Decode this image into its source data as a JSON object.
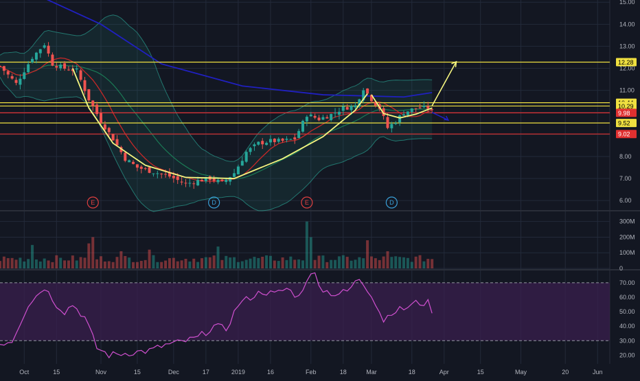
{
  "chart_data": {
    "type": "candlestick",
    "x_ticks": [
      "Oct",
      "15",
      "Nov",
      "15",
      "Dec",
      "17",
      "2019",
      "16",
      "Feb",
      "18",
      "Mar",
      "18",
      "Apr",
      "15",
      "May",
      "20",
      "Jun"
    ],
    "price_axis": {
      "ticks": [
        "15.00",
        "14.00",
        "13.00",
        "12.00",
        "11.00",
        "10.00",
        "9.00",
        "8.00",
        "7.00",
        "6.00"
      ],
      "ylim": [
        5.6,
        15.1
      ]
    },
    "horizontal_levels": [
      {
        "label": "12.28",
        "value": 12.28,
        "color": "#f0e040"
      },
      {
        "label": "10.44",
        "value": 10.44,
        "color": "#f0e040"
      },
      {
        "label": "10.29",
        "value": 10.29,
        "color": "#f0e040"
      },
      {
        "label": "9.98",
        "value": 9.98,
        "color": "#e03030"
      },
      {
        "label": "9.52",
        "value": 9.52,
        "color": "#f0e040"
      },
      {
        "label": "9.02",
        "value": 9.02,
        "color": "#e03030"
      }
    ],
    "event_markers": [
      {
        "label": "E",
        "index": 23,
        "color": "#e04040"
      },
      {
        "label": "D",
        "index": 53,
        "color": "#3aa0d8"
      },
      {
        "label": "E",
        "index": 76,
        "color": "#e04040"
      },
      {
        "label": "D",
        "index": 97,
        "color": "#3aa0d8"
      }
    ],
    "price_close_anchors": [
      [
        0,
        12.1
      ],
      [
        4,
        11.3
      ],
      [
        8,
        12.5
      ],
      [
        11,
        13.1
      ],
      [
        13,
        12.2
      ],
      [
        16,
        12.0
      ],
      [
        19,
        11.9
      ],
      [
        22,
        10.6
      ],
      [
        25,
        9.6
      ],
      [
        28,
        8.8
      ],
      [
        31,
        7.9
      ],
      [
        34,
        7.5
      ],
      [
        38,
        7.3
      ],
      [
        42,
        7.1
      ],
      [
        46,
        6.75
      ],
      [
        49,
        6.9
      ],
      [
        52,
        7.0
      ],
      [
        55,
        6.8
      ],
      [
        58,
        7.25
      ],
      [
        61,
        8.2
      ],
      [
        64,
        8.6
      ],
      [
        67,
        8.7
      ],
      [
        70,
        8.7
      ],
      [
        73,
        8.8
      ],
      [
        76,
        9.9
      ],
      [
        79,
        9.7
      ],
      [
        82,
        9.9
      ],
      [
        85,
        10.2
      ],
      [
        88,
        10.3
      ],
      [
        90,
        11.1
      ],
      [
        92,
        10.6
      ],
      [
        94,
        10.2
      ],
      [
        96,
        9.3
      ],
      [
        98,
        9.6
      ],
      [
        100,
        10.0
      ],
      [
        103,
        10.2
      ],
      [
        106,
        10.2
      ],
      [
        107,
        10.05
      ]
    ],
    "sma_long": [
      [
        0,
        16.1
      ],
      [
        25,
        14.0
      ],
      [
        40,
        12.2
      ],
      [
        60,
        11.2
      ],
      [
        80,
        10.8
      ],
      [
        100,
        10.7
      ],
      [
        107,
        10.9
      ]
    ],
    "annotations": {
      "cup_curve": [
        [
          18,
          12.0
        ],
        [
          22,
          10.2
        ],
        [
          28,
          8.6
        ],
        [
          36,
          7.6
        ],
        [
          46,
          7.05
        ],
        [
          58,
          7.0
        ],
        [
          70,
          7.9
        ],
        [
          80,
          8.9
        ],
        [
          88,
          10.1
        ],
        [
          91,
          10.85
        ]
      ],
      "handle_curve": [
        [
          92,
          10.8
        ],
        [
          95,
          9.95
        ],
        [
          99,
          9.75
        ],
        [
          103,
          9.92
        ],
        [
          107,
          10.2
        ]
      ],
      "up_arrow": [
        [
          107,
          10.3
        ],
        [
          113,
          12.3
        ]
      ],
      "down_arrow": [
        [
          107,
          10.0
        ],
        [
          111,
          9.65
        ]
      ]
    },
    "volume_axis": {
      "ticks": [
        "300M",
        "200M",
        "100M",
        "0"
      ],
      "ylim": [
        0,
        360
      ]
    },
    "volume": {
      "base": 40,
      "spikes": [
        [
          8,
          150
        ],
        [
          22,
          160
        ],
        [
          23,
          200
        ],
        [
          30,
          110
        ],
        [
          37,
          120
        ],
        [
          54,
          140
        ],
        [
          76,
          300
        ],
        [
          77,
          200
        ],
        [
          91,
          180
        ],
        [
          96,
          110
        ]
      ]
    },
    "rsi_axis": {
      "ticks": [
        "70.00",
        "60.00",
        "50.00",
        "40.00",
        "30.00",
        "20.00"
      ],
      "ylim": [
        14,
        78
      ]
    },
    "rsi_levels": [
      70,
      30
    ],
    "rsi_anchors": [
      [
        0,
        28
      ],
      [
        3,
        30
      ],
      [
        7,
        55
      ],
      [
        11,
        67
      ],
      [
        14,
        55
      ],
      [
        16,
        50
      ],
      [
        18,
        55
      ],
      [
        21,
        46
      ],
      [
        24,
        25
      ],
      [
        27,
        20
      ],
      [
        30,
        21
      ],
      [
        33,
        22
      ],
      [
        37,
        23
      ],
      [
        41,
        27
      ],
      [
        45,
        29
      ],
      [
        49,
        32
      ],
      [
        53,
        40
      ],
      [
        56,
        38
      ],
      [
        59,
        55
      ],
      [
        62,
        60
      ],
      [
        65,
        64
      ],
      [
        68,
        62
      ],
      [
        71,
        66
      ],
      [
        74,
        60
      ],
      [
        76,
        73
      ],
      [
        78,
        76
      ],
      [
        80,
        65
      ],
      [
        83,
        62
      ],
      [
        86,
        64
      ],
      [
        89,
        73
      ],
      [
        92,
        62
      ],
      [
        95,
        44
      ],
      [
        97,
        50
      ],
      [
        100,
        52
      ],
      [
        103,
        56
      ],
      [
        106,
        56
      ],
      [
        107,
        51
      ]
    ],
    "colors": {
      "up": "#26a69a",
      "down": "#ef5350",
      "ma_red": "#c62828",
      "ma_green": "#1b7a55",
      "sma_blue": "#2020c0",
      "band_fill": "#2a9d8f",
      "annotation": "#f5f580",
      "rsi_line": "#d050d0",
      "rsi_fill": "#3a1f4d",
      "grid": "#232a3a",
      "axis_text": "#b2b5be",
      "bg": "#131722"
    }
  }
}
